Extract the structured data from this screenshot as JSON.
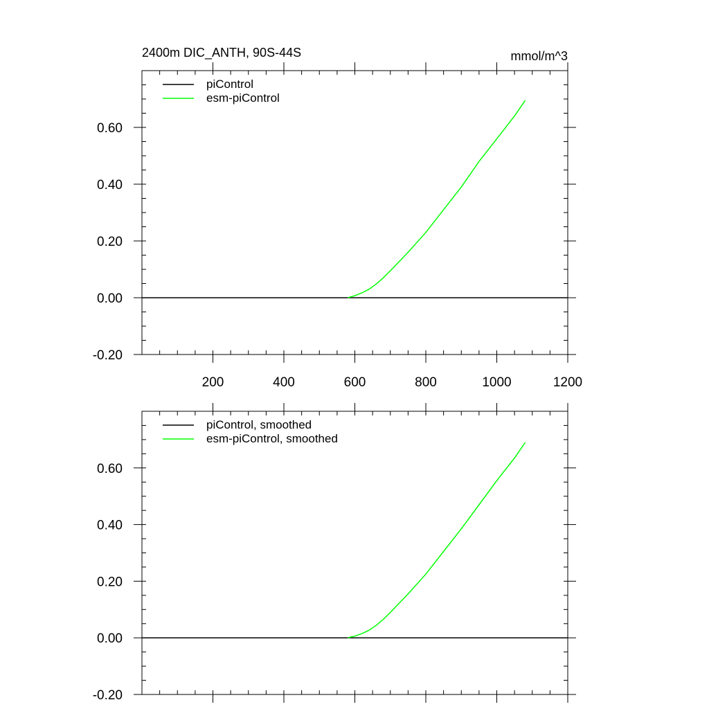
{
  "figure": {
    "title_left": "2400m DIC_ANTH, 90S-44S",
    "title_right": "mmol/m^3"
  },
  "colors": {
    "piControl": "#000000",
    "esm_piControl": "#00ff00"
  },
  "chart_data": [
    {
      "type": "line",
      "panel": "top",
      "xlim": [
        0,
        1200
      ],
      "ylim": [
        -0.2,
        0.8
      ],
      "xticks": [
        200,
        400,
        600,
        800,
        1000,
        1200
      ],
      "xtick_labels": [
        "200",
        "400",
        "600",
        "800",
        "1000",
        "1200"
      ],
      "yticks": [
        -0.2,
        0.0,
        0.2,
        0.4,
        0.6
      ],
      "ytick_labels": [
        "-0.20",
        "0.00",
        "0.20",
        "0.40",
        "0.60"
      ],
      "grid": false,
      "legend": "top-left",
      "series": [
        {
          "name": "piControl",
          "color": "#000000",
          "x": [
            0,
            1200
          ],
          "y": [
            0.0,
            0.0
          ]
        },
        {
          "name": "esm-piControl",
          "color": "#00ff00",
          "x": [
            580,
            600,
            620,
            640,
            660,
            680,
            700,
            750,
            800,
            850,
            900,
            950,
            1000,
            1050,
            1080
          ],
          "y": [
            0.0,
            0.007,
            0.017,
            0.03,
            0.048,
            0.07,
            0.095,
            0.16,
            0.23,
            0.31,
            0.39,
            0.48,
            0.56,
            0.64,
            0.695
          ]
        }
      ]
    },
    {
      "type": "line",
      "panel": "bottom",
      "xlim": [
        0,
        1200
      ],
      "ylim": [
        -0.2,
        0.8
      ],
      "xticks": [
        200,
        400,
        600,
        800,
        1000,
        1200
      ],
      "yticks": [
        -0.2,
        0.0,
        0.2,
        0.4,
        0.6
      ],
      "ytick_labels": [
        "-0.20",
        "0.00",
        "0.20",
        "0.40",
        "0.60"
      ],
      "grid": false,
      "legend": "top-left",
      "series": [
        {
          "name": "piControl, smoothed",
          "color": "#000000",
          "x": [
            0,
            1200
          ],
          "y": [
            0.0,
            0.0
          ]
        },
        {
          "name": "esm-piControl, smoothed",
          "color": "#00ff00",
          "x": [
            580,
            600,
            620,
            640,
            660,
            680,
            700,
            750,
            800,
            850,
            900,
            950,
            1000,
            1050,
            1080
          ],
          "y": [
            0.0,
            0.006,
            0.015,
            0.027,
            0.044,
            0.065,
            0.09,
            0.155,
            0.225,
            0.305,
            0.385,
            0.47,
            0.555,
            0.635,
            0.69
          ]
        }
      ]
    }
  ]
}
